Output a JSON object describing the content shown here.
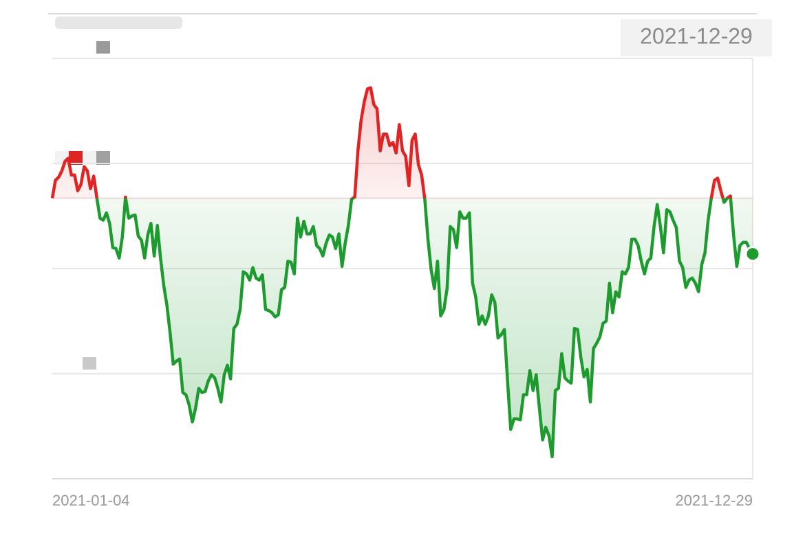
{
  "chart_data": {
    "type": "line",
    "categories": [
      "2021-01-04",
      null,
      null,
      null,
      null,
      null,
      null,
      null,
      null,
      null,
      null,
      null,
      null,
      null,
      null,
      null,
      null,
      null,
      null,
      null,
      null,
      null,
      null,
      null,
      null,
      null,
      null,
      null,
      null,
      null,
      null,
      null,
      null,
      null,
      null,
      null,
      null,
      null,
      null,
      null,
      null,
      null,
      null,
      null,
      null,
      null,
      null,
      null,
      null,
      null,
      null,
      null,
      null,
      null,
      null,
      null,
      null,
      null,
      null,
      null,
      null,
      null,
      null,
      null,
      null,
      null,
      null,
      null,
      null,
      null,
      null,
      null,
      null,
      null,
      null,
      null,
      null,
      null,
      null,
      null,
      null,
      null,
      null,
      null,
      null,
      null,
      null,
      null,
      null,
      null,
      null,
      null,
      null,
      null,
      null,
      null,
      null,
      null,
      null,
      null,
      null,
      null,
      null,
      null,
      null,
      null,
      null,
      null,
      null,
      null,
      null,
      null,
      null,
      null,
      null,
      null,
      null,
      null,
      null,
      null,
      null,
      null,
      null,
      null,
      null,
      null,
      null,
      null,
      null,
      null,
      null,
      null,
      null,
      null,
      null,
      null,
      null,
      null,
      null,
      null,
      null,
      null,
      null,
      null,
      null,
      null,
      null,
      null,
      null,
      null,
      null,
      null,
      null,
      null,
      null,
      null,
      null,
      null,
      null,
      null,
      null,
      null,
      null,
      null,
      null,
      null,
      null,
      null,
      null,
      null,
      null,
      null,
      null,
      null,
      null,
      null,
      null,
      null,
      null,
      null,
      null,
      null,
      null,
      null,
      null,
      null,
      null,
      null,
      null,
      null,
      null,
      null,
      null,
      null,
      null,
      null,
      null,
      null,
      null,
      null,
      null,
      null,
      null,
      null,
      null,
      null,
      null,
      null,
      null,
      null,
      null,
      null,
      null,
      null,
      null,
      null,
      null,
      null,
      null,
      null,
      "2021-12-29"
    ],
    "values": [
      -3.3,
      -1.6,
      -1.3,
      -0.7,
      0.2,
      0.5,
      -1.1,
      -1.1,
      -2.6,
      -2.0,
      -0.3,
      -0.7,
      -2.4,
      -1.2,
      -3.3,
      -5.2,
      -5.4,
      -4.7,
      -5.7,
      -8.0,
      -8.1,
      -9.0,
      -7.0,
      -3.2,
      -5.2,
      -5.0,
      -4.9,
      -6.9,
      -7.3,
      -9.0,
      -6.8,
      -5.7,
      -8.8,
      -5.9,
      -9.0,
      -11.6,
      -13.5,
      -16.1,
      -19.1,
      -18.8,
      -18.6,
      -21.8,
      -22.0,
      -23.0,
      -24.6,
      -23.3,
      -21.4,
      -21.8,
      -21.7,
      -20.7,
      -20.1,
      -20.4,
      -21.4,
      -22.7,
      -20.1,
      -19.2,
      -20.5,
      -15.7,
      -15.3,
      -13.9,
      -10.3,
      -10.5,
      -11.1,
      -9.9,
      -10.9,
      -11.1,
      -10.6,
      -13.9,
      -14.0,
      -14.2,
      -14.6,
      -14.4,
      -12.0,
      -11.8,
      -9.3,
      -9.4,
      -10.5,
      -5.2,
      -7.0,
      -5.5,
      -6.7,
      -6.7,
      -6.0,
      -7.8,
      -8.1,
      -8.8,
      -7.6,
      -6.8,
      -7.0,
      -8.1,
      -6.7,
      -9.8,
      -7.6,
      -5.9,
      -3.4,
      -3.2,
      1.2,
      4.1,
      5.9,
      7.1,
      7.2,
      5.6,
      5.2,
      1.2,
      2.8,
      2.8,
      1.7,
      2.0,
      1.0,
      3.7,
      1.2,
      0.7,
      -2.1,
      2.2,
      2.8,
      -0.1,
      -1.1,
      -3.4,
      -7.2,
      -10.1,
      -11.9,
      -9.3,
      -14.5,
      -13.9,
      -11.9,
      -6.0,
      -6.3,
      -8.0,
      -4.6,
      -5.2,
      -5.2,
      -4.7,
      -11.4,
      -12.7,
      -15.3,
      -14.5,
      -15.3,
      -14.5,
      -12.5,
      -13.2,
      -16.6,
      -16.3,
      -15.8,
      -20.7,
      -25.3,
      -24.3,
      -24.3,
      -24.4,
      -22.0,
      -22.0,
      -19.7,
      -21.6,
      -20.1,
      -23.3,
      -26.3,
      -25.1,
      -25.9,
      -27.9,
      -21.6,
      -21.4,
      -18.1,
      -20.4,
      -20.7,
      -20.9,
      -15.7,
      -15.8,
      -18.4,
      -20.3,
      -19.6,
      -22.7,
      -17.6,
      -17.1,
      -16.5,
      -15.2,
      -15.0,
      -11.4,
      -14.2,
      -12.2,
      -12.7,
      -10.3,
      -10.5,
      -9.9,
      -7.2,
      -7.2,
      -7.8,
      -9.3,
      -10.5,
      -9.3,
      -9.0,
      -6.0,
      -3.9,
      -6.0,
      -8.5,
      -4.4,
      -4.6,
      -5.4,
      -6.1,
      -9.3,
      -9.9,
      -11.8,
      -11.1,
      -10.9,
      -11.4,
      -12.2,
      -9.6,
      -8.5,
      -5.4,
      -3.3,
      -1.6,
      -1.4,
      -2.6,
      -3.7,
      -3.3,
      -3.1,
      -6.8,
      -9.8,
      -7.8,
      -7.5,
      -7.5,
      -8.1,
      -8.6
    ],
    "baseline": -3.3,
    "ylim": [
      -30,
      10
    ],
    "yticks": [
      -30,
      -20,
      -10,
      0,
      10
    ],
    "grid": true,
    "color_up": "#e02424",
    "color_down": "#1e9b2e"
  }
}
